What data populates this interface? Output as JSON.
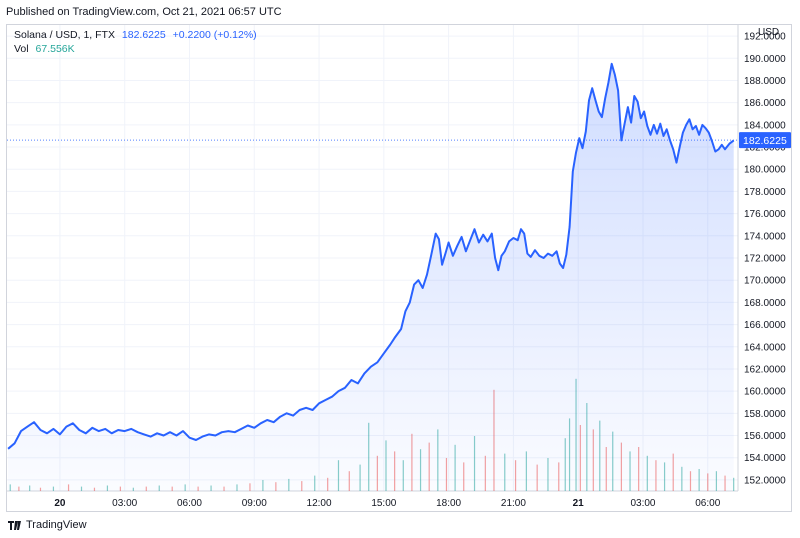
{
  "published": "Published on TradingView.com, Oct 21, 2021 06:57 UTC",
  "legend": {
    "symbol": "Solana / USD, 1, FTX",
    "last": "182.6225",
    "change": "+0.2200 (+0.12%)",
    "vol_label": "Vol",
    "vol_value": "67.556K"
  },
  "footer": {
    "brand": "TradingView"
  },
  "colors": {
    "line": "#2962ff",
    "fill": "#2962ff",
    "grid": "#f0f3fa",
    "up": "#26a69a",
    "down": "#ef5350",
    "axis_text": "#131722"
  },
  "chart_data": {
    "type": "area",
    "title": "Solana / USD, 1, FTX",
    "currency": "USD",
    "ylim": [
      151,
      193
    ],
    "y_ticks": [
      "152.0000",
      "154.0000",
      "156.0000",
      "158.0000",
      "160.0000",
      "162.0000",
      "164.0000",
      "166.0000",
      "168.0000",
      "170.0000",
      "172.0000",
      "174.0000",
      "176.0000",
      "178.0000",
      "180.0000",
      "182.0000",
      "184.0000",
      "186.0000",
      "188.0000",
      "190.0000",
      "192.0000"
    ],
    "x_ticks": [
      {
        "label": "20",
        "t": 0,
        "bold": true
      },
      {
        "label": "03:00",
        "t": 3
      },
      {
        "label": "06:00",
        "t": 6
      },
      {
        "label": "09:00",
        "t": 9
      },
      {
        "label": "12:00",
        "t": 12
      },
      {
        "label": "15:00",
        "t": 15
      },
      {
        "label": "18:00",
        "t": 18
      },
      {
        "label": "21:00",
        "t": 21
      },
      {
        "label": "21",
        "t": 24,
        "bold": true
      },
      {
        "label": "03:00",
        "t": 27
      },
      {
        "label": "06:00",
        "t": 30
      }
    ],
    "xlim": [
      -2.45,
      31.4
    ],
    "last_price": 182.6225,
    "last_label": "182.6225",
    "price_series": [
      [
        -2.4,
        154.8
      ],
      [
        -2.1,
        155.3
      ],
      [
        -1.8,
        156.4
      ],
      [
        -1.5,
        156.8
      ],
      [
        -1.2,
        157.2
      ],
      [
        -0.9,
        156.5
      ],
      [
        -0.6,
        156.2
      ],
      [
        -0.3,
        156.6
      ],
      [
        0,
        156.1
      ],
      [
        0.3,
        156.8
      ],
      [
        0.6,
        157.1
      ],
      [
        0.9,
        156.5
      ],
      [
        1.2,
        156.2
      ],
      [
        1.5,
        156.7
      ],
      [
        1.8,
        156.4
      ],
      [
        2.1,
        156.6
      ],
      [
        2.4,
        156.2
      ],
      [
        2.7,
        156.5
      ],
      [
        3.0,
        156.4
      ],
      [
        3.3,
        156.6
      ],
      [
        3.6,
        156.3
      ],
      [
        3.9,
        156.1
      ],
      [
        4.2,
        155.9
      ],
      [
        4.5,
        156.2
      ],
      [
        4.8,
        156.0
      ],
      [
        5.1,
        156.3
      ],
      [
        5.4,
        156.0
      ],
      [
        5.7,
        156.4
      ],
      [
        6.0,
        155.8
      ],
      [
        6.3,
        155.6
      ],
      [
        6.6,
        155.9
      ],
      [
        6.9,
        156.1
      ],
      [
        7.2,
        156.0
      ],
      [
        7.5,
        156.3
      ],
      [
        7.8,
        156.4
      ],
      [
        8.1,
        156.3
      ],
      [
        8.4,
        156.6
      ],
      [
        8.7,
        156.9
      ],
      [
        9.0,
        156.7
      ],
      [
        9.3,
        157.1
      ],
      [
        9.6,
        157.4
      ],
      [
        9.9,
        157.2
      ],
      [
        10.2,
        157.7
      ],
      [
        10.5,
        158.0
      ],
      [
        10.8,
        157.8
      ],
      [
        11.1,
        158.3
      ],
      [
        11.4,
        158.5
      ],
      [
        11.7,
        158.3
      ],
      [
        12.0,
        158.9
      ],
      [
        12.3,
        159.2
      ],
      [
        12.6,
        159.5
      ],
      [
        12.9,
        160.0
      ],
      [
        13.2,
        160.3
      ],
      [
        13.5,
        161.0
      ],
      [
        13.8,
        160.7
      ],
      [
        14.1,
        161.6
      ],
      [
        14.4,
        162.2
      ],
      [
        14.7,
        162.6
      ],
      [
        15.0,
        163.4
      ],
      [
        15.3,
        164.2
      ],
      [
        15.5,
        164.8
      ],
      [
        15.8,
        165.6
      ],
      [
        16.0,
        167.2
      ],
      [
        16.2,
        168.0
      ],
      [
        16.4,
        169.6
      ],
      [
        16.6,
        170.0
      ],
      [
        16.8,
        169.3
      ],
      [
        17.0,
        170.5
      ],
      [
        17.2,
        172.3
      ],
      [
        17.4,
        174.2
      ],
      [
        17.55,
        173.7
      ],
      [
        17.7,
        171.4
      ],
      [
        17.85,
        172.4
      ],
      [
        18.0,
        173.4
      ],
      [
        18.2,
        172.2
      ],
      [
        18.4,
        173.1
      ],
      [
        18.6,
        173.9
      ],
      [
        18.8,
        172.6
      ],
      [
        19.0,
        173.6
      ],
      [
        19.2,
        174.6
      ],
      [
        19.4,
        173.4
      ],
      [
        19.6,
        174.1
      ],
      [
        19.8,
        173.5
      ],
      [
        20.0,
        174.2
      ],
      [
        20.15,
        172.0
      ],
      [
        20.3,
        170.9
      ],
      [
        20.45,
        172.2
      ],
      [
        20.6,
        172.6
      ],
      [
        20.8,
        173.5
      ],
      [
        21.0,
        173.8
      ],
      [
        21.2,
        173.6
      ],
      [
        21.35,
        174.6
      ],
      [
        21.5,
        174.2
      ],
      [
        21.65,
        172.4
      ],
      [
        21.8,
        172.1
      ],
      [
        22.0,
        172.7
      ],
      [
        22.2,
        172.2
      ],
      [
        22.4,
        172.0
      ],
      [
        22.6,
        172.4
      ],
      [
        22.8,
        172.2
      ],
      [
        23.0,
        172.6
      ],
      [
        23.15,
        171.5
      ],
      [
        23.3,
        171.1
      ],
      [
        23.45,
        172.3
      ],
      [
        23.6,
        174.8
      ],
      [
        23.75,
        179.8
      ],
      [
        23.9,
        181.5
      ],
      [
        24.05,
        182.8
      ],
      [
        24.2,
        181.9
      ],
      [
        24.35,
        183.4
      ],
      [
        24.5,
        186.2
      ],
      [
        24.65,
        187.3
      ],
      [
        24.8,
        186.2
      ],
      [
        24.95,
        185.2
      ],
      [
        25.1,
        184.7
      ],
      [
        25.25,
        186.4
      ],
      [
        25.4,
        187.8
      ],
      [
        25.55,
        189.5
      ],
      [
        25.7,
        188.5
      ],
      [
        25.85,
        187.1
      ],
      [
        26.0,
        182.6
      ],
      [
        26.15,
        184.1
      ],
      [
        26.3,
        185.6
      ],
      [
        26.45,
        184.2
      ],
      [
        26.6,
        186.6
      ],
      [
        26.75,
        186.1
      ],
      [
        26.9,
        184.6
      ],
      [
        27.05,
        185.2
      ],
      [
        27.2,
        183.9
      ],
      [
        27.35,
        183.1
      ],
      [
        27.5,
        184.0
      ],
      [
        27.65,
        183.2
      ],
      [
        27.8,
        184.1
      ],
      [
        27.95,
        183.0
      ],
      [
        28.1,
        183.6
      ],
      [
        28.25,
        182.6
      ],
      [
        28.4,
        181.8
      ],
      [
        28.55,
        180.6
      ],
      [
        28.7,
        182.0
      ],
      [
        28.85,
        183.3
      ],
      [
        29.0,
        184.0
      ],
      [
        29.15,
        184.5
      ],
      [
        29.3,
        183.6
      ],
      [
        29.45,
        183.9
      ],
      [
        29.6,
        183.1
      ],
      [
        29.75,
        184.0
      ],
      [
        29.9,
        183.7
      ],
      [
        30.05,
        183.3
      ],
      [
        30.2,
        182.5
      ],
      [
        30.35,
        181.6
      ],
      [
        30.5,
        181.8
      ],
      [
        30.65,
        182.2
      ],
      [
        30.8,
        181.8
      ],
      [
        31.0,
        182.3
      ],
      [
        31.2,
        182.6
      ]
    ],
    "volume_series": [
      [
        -2.3,
        0.3,
        1
      ],
      [
        -1.9,
        0.2,
        0
      ],
      [
        -1.4,
        0.25,
        1
      ],
      [
        -0.9,
        0.15,
        0
      ],
      [
        -0.3,
        0.2,
        1
      ],
      [
        0.4,
        0.3,
        0
      ],
      [
        1.0,
        0.2,
        1
      ],
      [
        1.6,
        0.15,
        0
      ],
      [
        2.2,
        0.25,
        1
      ],
      [
        2.8,
        0.2,
        0
      ],
      [
        3.4,
        0.15,
        1
      ],
      [
        4.0,
        0.2,
        0
      ],
      [
        4.6,
        0.25,
        1
      ],
      [
        5.2,
        0.2,
        0
      ],
      [
        5.8,
        0.3,
        1
      ],
      [
        6.4,
        0.2,
        0
      ],
      [
        7.0,
        0.25,
        1
      ],
      [
        7.6,
        0.2,
        0
      ],
      [
        8.2,
        0.3,
        1
      ],
      [
        8.8,
        0.35,
        0
      ],
      [
        9.4,
        0.5,
        1
      ],
      [
        10.0,
        0.4,
        0
      ],
      [
        10.6,
        0.55,
        1
      ],
      [
        11.2,
        0.45,
        0
      ],
      [
        11.8,
        0.7,
        1
      ],
      [
        12.4,
        0.6,
        0
      ],
      [
        12.9,
        1.4,
        1
      ],
      [
        13.4,
        0.9,
        0
      ],
      [
        13.9,
        1.2,
        1
      ],
      [
        14.3,
        3.1,
        1
      ],
      [
        14.7,
        1.6,
        0
      ],
      [
        15.1,
        2.3,
        1
      ],
      [
        15.5,
        1.8,
        0
      ],
      [
        15.9,
        1.4,
        1
      ],
      [
        16.3,
        2.6,
        0
      ],
      [
        16.7,
        1.9,
        1
      ],
      [
        17.1,
        2.2,
        0
      ],
      [
        17.5,
        2.8,
        1
      ],
      [
        17.9,
        1.5,
        0
      ],
      [
        18.3,
        2.1,
        1
      ],
      [
        18.7,
        1.3,
        0
      ],
      [
        19.2,
        2.5,
        1
      ],
      [
        19.7,
        1.6,
        0
      ],
      [
        20.1,
        4.6,
        0
      ],
      [
        20.6,
        1.7,
        1
      ],
      [
        21.1,
        1.4,
        0
      ],
      [
        21.6,
        1.8,
        1
      ],
      [
        22.1,
        1.2,
        0
      ],
      [
        22.6,
        1.5,
        1
      ],
      [
        23.1,
        1.3,
        0
      ],
      [
        23.4,
        2.4,
        1
      ],
      [
        23.6,
        3.3,
        1
      ],
      [
        23.9,
        5.1,
        1
      ],
      [
        24.1,
        3.0,
        0
      ],
      [
        24.4,
        4.0,
        1
      ],
      [
        24.7,
        2.8,
        0
      ],
      [
        25.0,
        3.2,
        1
      ],
      [
        25.3,
        2.0,
        0
      ],
      [
        25.6,
        2.7,
        1
      ],
      [
        26.0,
        2.2,
        0
      ],
      [
        26.4,
        1.8,
        1
      ],
      [
        26.8,
        2.0,
        0
      ],
      [
        27.2,
        1.6,
        1
      ],
      [
        27.6,
        1.4,
        0
      ],
      [
        28.0,
        1.3,
        1
      ],
      [
        28.4,
        1.7,
        0
      ],
      [
        28.8,
        1.1,
        1
      ],
      [
        29.2,
        0.9,
        0
      ],
      [
        29.6,
        1.0,
        1
      ],
      [
        30.0,
        0.8,
        0
      ],
      [
        30.4,
        0.9,
        1
      ],
      [
        30.8,
        0.7,
        0
      ],
      [
        31.2,
        0.6,
        1
      ]
    ]
  }
}
